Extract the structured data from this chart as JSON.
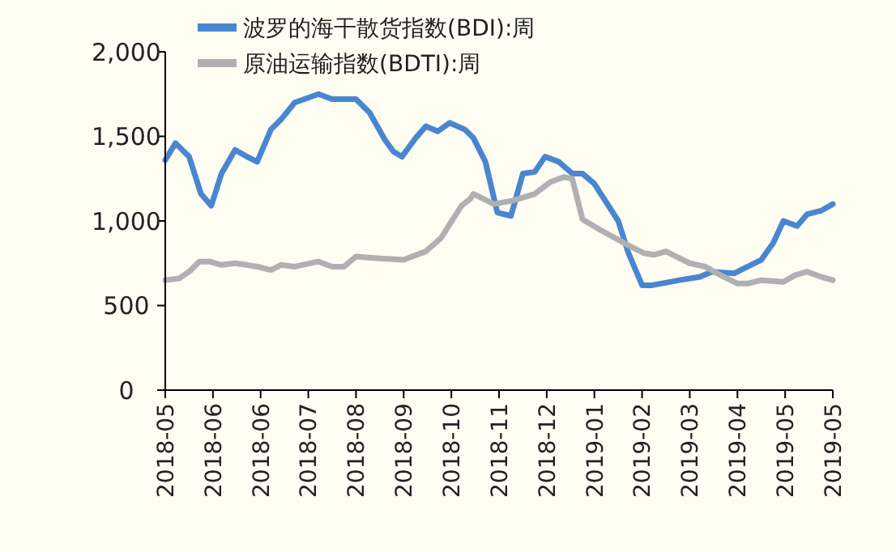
{
  "chart_data": {
    "type": "line",
    "xlim": [
      "2018-05-04",
      "2019-05-31"
    ],
    "xticks": [
      {
        "value": "2018-05-04",
        "label": "2018-05"
      },
      {
        "value": "2018-06-01",
        "label": "2018-06"
      },
      {
        "value": "2018-06-29",
        "label": "2018-06"
      },
      {
        "value": "2018-07-27",
        "label": "2018-07"
      },
      {
        "value": "2018-08-24",
        "label": "2018-08"
      },
      {
        "value": "2018-09-21",
        "label": "2018-09"
      },
      {
        "value": "2018-10-19",
        "label": "2018-10"
      },
      {
        "value": "2018-11-16",
        "label": "2018-11"
      },
      {
        "value": "2018-12-14",
        "label": "2018-12"
      },
      {
        "value": "2019-01-11",
        "label": "2019-01"
      },
      {
        "value": "2019-02-08",
        "label": "2019-02"
      },
      {
        "value": "2019-03-08",
        "label": "2019-03"
      },
      {
        "value": "2019-04-05",
        "label": "2019-04"
      },
      {
        "value": "2019-05-03",
        "label": "2019-05"
      },
      {
        "value": "2019-05-31",
        "label": "2019-05"
      }
    ],
    "ylim": [
      0,
      2000
    ],
    "yticks": [
      0,
      500,
      {
        "value": 1000,
        "label": "1,000"
      },
      {
        "value": 1500,
        "label": "1,500"
      },
      {
        "value": 2000,
        "label": "2,000"
      }
    ],
    "grid": false,
    "legend": "top",
    "marker": "none",
    "line_style": "solid",
    "series": [
      {
        "name": "波罗的海干散货指数(BDI):周",
        "color": "#4a86d0",
        "x": [
          "2018-05-04",
          "2018-05-10",
          "2018-05-18",
          "2018-05-25",
          "2018-05-31",
          "2018-06-06",
          "2018-06-14",
          "2018-06-21",
          "2018-06-27",
          "2018-07-05",
          "2018-07-11",
          "2018-07-19",
          "2018-08-02",
          "2018-08-10",
          "2018-08-24",
          "2018-09-01",
          "2018-09-10",
          "2018-09-15",
          "2018-09-20",
          "2018-09-28",
          "2018-10-04",
          "2018-10-11",
          "2018-10-18",
          "2018-10-27",
          "2018-11-01",
          "2018-11-08",
          "2018-11-15",
          "2018-11-23",
          "2018-11-30",
          "2018-12-07",
          "2018-12-13",
          "2018-12-21",
          "2018-12-29",
          "2019-01-04",
          "2019-01-11",
          "2019-01-18",
          "2019-01-25",
          "2019-01-31",
          "2019-02-08",
          "2019-02-14",
          "2019-03-02",
          "2019-03-14",
          "2019-03-21",
          "2019-04-03",
          "2019-04-11",
          "2019-04-19",
          "2019-04-26",
          "2019-05-02",
          "2019-05-10",
          "2019-05-16",
          "2019-05-24",
          "2019-05-31"
        ],
        "values": [
          1360,
          1460,
          1380,
          1160,
          1090,
          1280,
          1420,
          1380,
          1350,
          1540,
          1600,
          1700,
          1750,
          1720,
          1720,
          1640,
          1480,
          1410,
          1380,
          1490,
          1560,
          1530,
          1580,
          1540,
          1490,
          1350,
          1050,
          1030,
          1280,
          1290,
          1380,
          1350,
          1280,
          1280,
          1220,
          1110,
          1000,
          810,
          620,
          620,
          650,
          670,
          700,
          690,
          730,
          770,
          870,
          1000,
          970,
          1040,
          1060,
          1100
        ]
      },
      {
        "name": "原油运输指数(BDTI):周",
        "color": "#b0b0b0",
        "x": [
          "2018-05-04",
          "2018-05-12",
          "2018-05-18",
          "2018-05-24",
          "2018-05-30",
          "2018-06-06",
          "2018-06-14",
          "2018-06-21",
          "2018-06-27",
          "2018-07-05",
          "2018-07-11",
          "2018-07-19",
          "2018-08-02",
          "2018-08-10",
          "2018-08-17",
          "2018-08-24",
          "2018-09-05",
          "2018-09-21",
          "2018-10-04",
          "2018-10-13",
          "2018-10-18",
          "2018-10-25",
          "2018-10-30",
          "2018-11-01",
          "2018-11-13",
          "2018-11-24",
          "2018-12-07",
          "2018-12-16",
          "2018-12-24",
          "2018-12-29",
          "2019-01-04",
          "2019-01-14",
          "2019-01-23",
          "2019-02-01",
          "2019-02-09",
          "2019-02-15",
          "2019-02-22",
          "2019-03-08",
          "2019-03-17",
          "2019-03-26",
          "2019-04-05",
          "2019-04-11",
          "2019-04-19",
          "2019-05-02",
          "2019-05-09",
          "2019-05-16",
          "2019-05-24",
          "2019-05-31"
        ],
        "values": [
          650,
          660,
          700,
          760,
          760,
          740,
          750,
          740,
          730,
          710,
          740,
          730,
          760,
          730,
          730,
          790,
          780,
          770,
          820,
          900,
          980,
          1090,
          1130,
          1160,
          1100,
          1120,
          1160,
          1230,
          1260,
          1250,
          1010,
          950,
          900,
          850,
          810,
          800,
          820,
          750,
          730,
          680,
          630,
          630,
          650,
          640,
          680,
          700,
          670,
          650
        ]
      }
    ]
  }
}
